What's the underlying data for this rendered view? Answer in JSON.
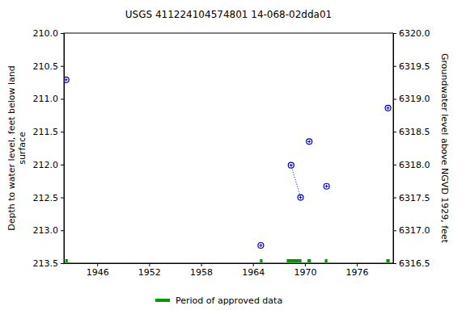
{
  "chart_data": {
    "type": "scatter",
    "title": "USGS 411224104574801 14-068-02dda01",
    "ylabel": [
      "Depth to water level, feet below land",
      "surface"
    ],
    "y2label": "Groundwater level above NGVD 1929, feet",
    "xlim": [
      1942.15,
      1980.2
    ],
    "xticks": [
      1946,
      1952,
      1958,
      1964,
      1970,
      1976
    ],
    "ylim": [
      213.5,
      210.0
    ],
    "yticks": [
      {
        "value": 210.0,
        "label": "210.0"
      },
      210.5,
      {
        "value": 211.0,
        "label": "211.0"
      },
      211.5,
      {
        "value": 212.0,
        "label": "212.0"
      },
      212.5,
      {
        "value": 213.0,
        "label": "213.0"
      },
      213.5
    ],
    "y2lim": [
      6316.5,
      6320.0
    ],
    "y2ticks": [
      {
        "value": 6320.0,
        "label": "6320.0"
      },
      6319.5,
      {
        "value": 6319.0,
        "label": "6319.0"
      },
      6318.5,
      {
        "value": 6318.0,
        "label": "6318.0"
      },
      6317.5,
      {
        "value": 6317.0,
        "label": "6317.0"
      },
      6316.5
    ],
    "grid": false,
    "series": [
      {
        "type": "scatter",
        "marker": "circle",
        "color": "#0000cc",
        "x": [
          1942.4,
          1964.9,
          1968.4,
          1969.5,
          1970.5,
          1972.5,
          1979.6
        ],
        "values": [
          210.71,
          213.23,
          212.01,
          212.5,
          211.65,
          212.33,
          211.14
        ]
      },
      {
        "type": "line",
        "line_style": "dotted",
        "color": "#0000cc",
        "x": [
          1968.4,
          1969.5
        ],
        "values": [
          212.01,
          212.5
        ]
      },
      {
        "type": "period",
        "name": "Period of approved data",
        "color": "#009900",
        "x_ranges": [
          [
            1942.3,
            1942.6
          ],
          [
            1964.8,
            1965.1
          ],
          [
            1967.9,
            1969.6
          ],
          [
            1970.3,
            1970.7
          ],
          [
            1972.3,
            1972.6
          ],
          [
            1979.4,
            1979.8
          ]
        ]
      }
    ]
  }
}
